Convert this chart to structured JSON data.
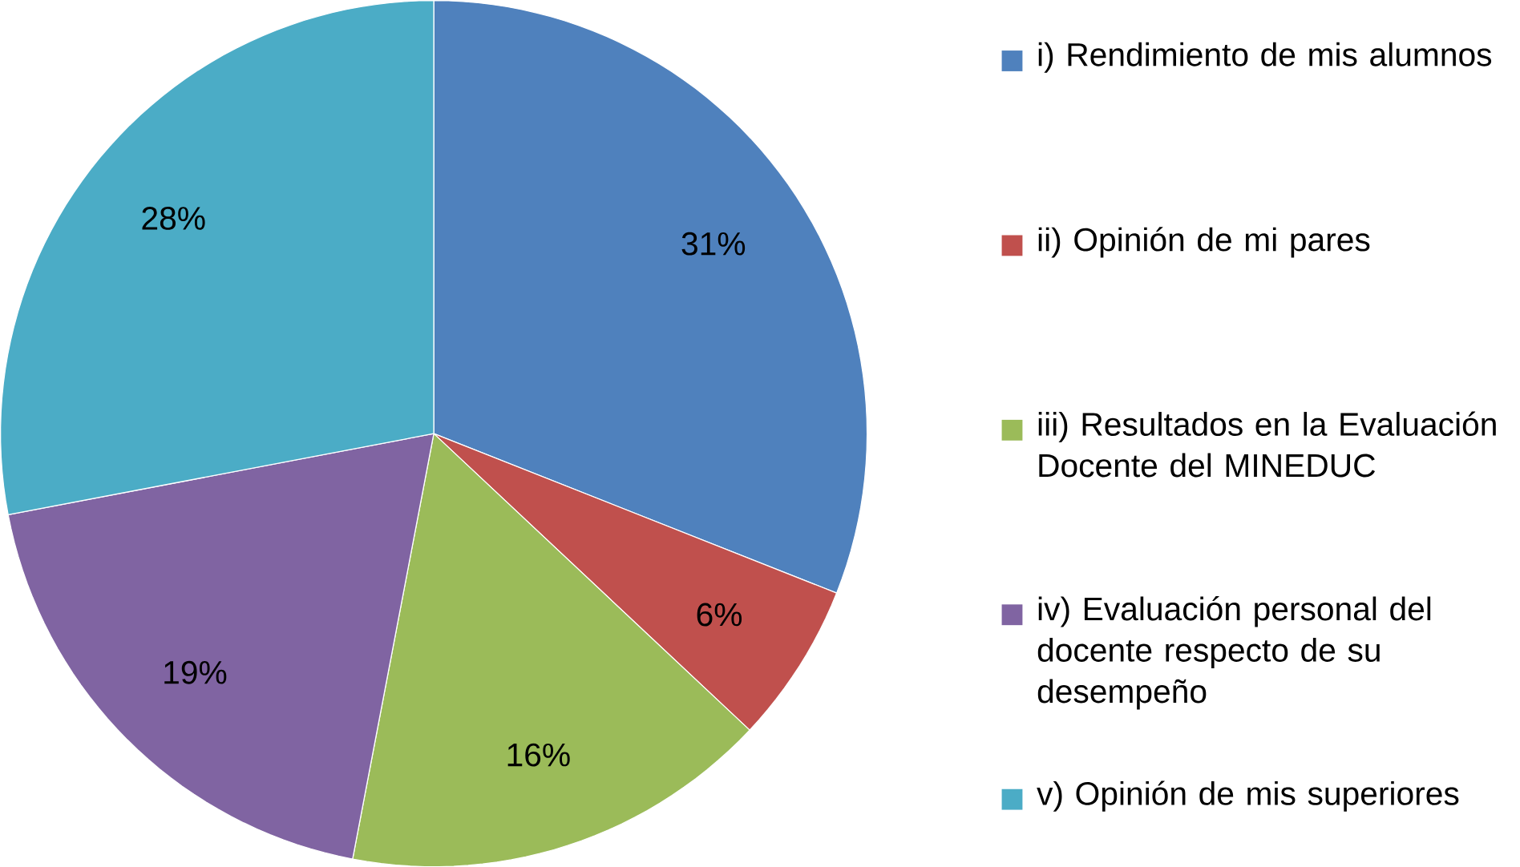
{
  "chart_data": {
    "type": "pie",
    "categories": [
      "i) Rendimiento de mis alumnos",
      "ii) Opinión de mi pares",
      "iii) Resultados en la Evaluación Docente del MINEDUC",
      "iv) Evaluación personal del docente respecto de su desempeño",
      "v) Opinión de mis superiores"
    ],
    "values": [
      31,
      6,
      16,
      19,
      28
    ],
    "value_labels": [
      "31%",
      "6%",
      "16%",
      "19%",
      "28%"
    ],
    "colors": [
      "#4f81bd",
      "#c0504d",
      "#9bbb59",
      "#8064a2",
      "#4bacc6"
    ],
    "legend": "right"
  }
}
